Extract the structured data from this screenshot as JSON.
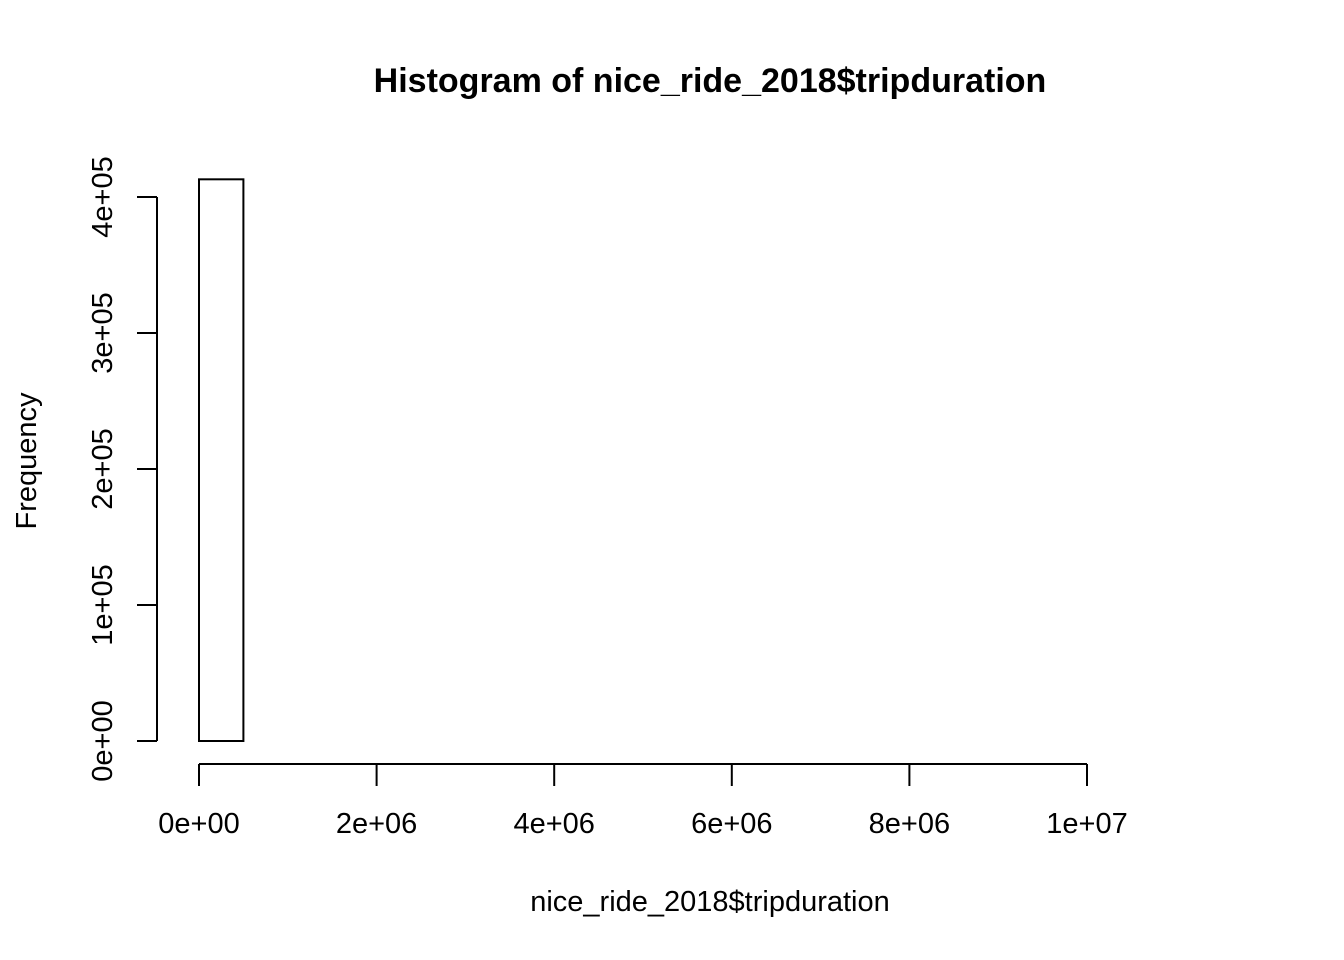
{
  "chart_data": {
    "type": "bar",
    "title": "Histogram of nice_ride_2018$tripduration",
    "xlabel": "nice_ride_2018$tripduration",
    "ylabel": "Frequency",
    "x_ticks": [
      0,
      2000000,
      4000000,
      6000000,
      8000000,
      10000000
    ],
    "x_tick_labels": [
      "0e+00",
      "2e+06",
      "4e+06",
      "6e+06",
      "8e+06",
      "1e+07"
    ],
    "y_ticks": [
      0,
      100000,
      200000,
      300000,
      400000
    ],
    "y_tick_labels": [
      "0e+00",
      "1e+05",
      "2e+05",
      "3e+05",
      "4e+05"
    ],
    "bin_width": 500000,
    "bins": [
      {
        "start": 0,
        "end": 500000,
        "count": 413000
      },
      {
        "start": 500000,
        "end": 1000000,
        "count": 0
      },
      {
        "start": 1000000,
        "end": 1500000,
        "count": 0
      },
      {
        "start": 1500000,
        "end": 2000000,
        "count": 0
      },
      {
        "start": 2000000,
        "end": 2500000,
        "count": 0
      },
      {
        "start": 2500000,
        "end": 3000000,
        "count": 0
      },
      {
        "start": 3000000,
        "end": 3500000,
        "count": 0
      },
      {
        "start": 3500000,
        "end": 4000000,
        "count": 0
      },
      {
        "start": 4000000,
        "end": 4500000,
        "count": 0
      },
      {
        "start": 4500000,
        "end": 5000000,
        "count": 0
      },
      {
        "start": 5000000,
        "end": 5500000,
        "count": 0
      },
      {
        "start": 5500000,
        "end": 6000000,
        "count": 0
      },
      {
        "start": 6000000,
        "end": 6500000,
        "count": 0
      },
      {
        "start": 6500000,
        "end": 7000000,
        "count": 0
      },
      {
        "start": 7000000,
        "end": 7500000,
        "count": 0
      },
      {
        "start": 7500000,
        "end": 8000000,
        "count": 0
      },
      {
        "start": 8000000,
        "end": 8500000,
        "count": 0
      },
      {
        "start": 8500000,
        "end": 9000000,
        "count": 0
      },
      {
        "start": 9000000,
        "end": 9500000,
        "count": 0
      },
      {
        "start": 9500000,
        "end": 10000000,
        "count": 0
      },
      {
        "start": 10000000,
        "end": 10500000,
        "count": 0
      },
      {
        "start": 10500000,
        "end": 11000000,
        "count": 0
      },
      {
        "start": 11000000,
        "end": 11500000,
        "count": 0
      }
    ],
    "xlim": [
      0,
      11500000
    ],
    "ylim": [
      0,
      400000
    ],
    "grid": false,
    "legend": "none"
  }
}
